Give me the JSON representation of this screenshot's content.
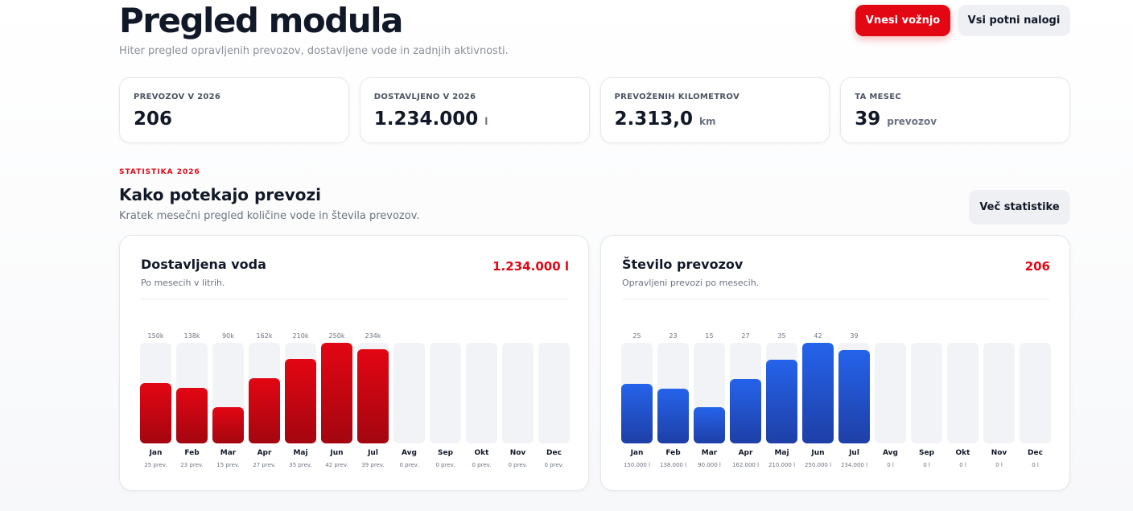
{
  "header": {
    "title": "Pregled modula",
    "subtitle": "Hiter pregled opravljenih prevozov, dostavljene vode in zadnjih aktivnosti.",
    "primary_button": "Vnesi vožnjo",
    "secondary_button": "Vsi potni nalogi"
  },
  "stats": [
    {
      "label": "PREVOZOV V 2026",
      "value": "206",
      "unit": ""
    },
    {
      "label": "DOSTAVLJENO V 2026",
      "value": "1.234.000",
      "unit": "l"
    },
    {
      "label": "PREVOŽENIH KILOMETROV",
      "value": "2.313,0",
      "unit": "km"
    },
    {
      "label": "TA MESEC",
      "value": "39",
      "unit": "prevozov"
    }
  ],
  "section": {
    "eyebrow": "STATISTIKA 2026",
    "title": "Kako potekajo prevozi",
    "subtitle": "Kratek mesečni pregled količine vode in števila prevozov.",
    "more_button": "Več statistike"
  },
  "colors": {
    "accent_red": "#e30613",
    "accent_blue": "#2563eb"
  },
  "chart_data": [
    {
      "type": "bar",
      "title": "Dostavljena voda",
      "subtitle": "Po mesecih v litrih.",
      "total": "1.234.000 l",
      "categories": [
        "Jan",
        "Feb",
        "Mar",
        "Apr",
        "Maj",
        "Jun",
        "Jul",
        "Avg",
        "Sep",
        "Okt",
        "Nov",
        "Dec"
      ],
      "values": [
        150000,
        138000,
        90000,
        162000,
        210000,
        250000,
        234000,
        0,
        0,
        0,
        0,
        0
      ],
      "value_labels": [
        "150k",
        "138k",
        "90k",
        "162k",
        "210k",
        "250k",
        "234k",
        "",
        "",
        "",
        "",
        ""
      ],
      "sub_labels": [
        "25 prev.",
        "23 prev.",
        "15 prev.",
        "27 prev.",
        "35 prev.",
        "42 prev.",
        "39 prev.",
        "0 prev.",
        "0 prev.",
        "0 prev.",
        "0 prev.",
        "0 prev."
      ],
      "ylim": [
        0,
        250000
      ],
      "color": "#e30613"
    },
    {
      "type": "bar",
      "title": "Število prevozov",
      "subtitle": "Opravljeni prevozi po mesecih.",
      "total": "206",
      "categories": [
        "Jan",
        "Feb",
        "Mar",
        "Apr",
        "Maj",
        "Jun",
        "Jul",
        "Avg",
        "Sep",
        "Okt",
        "Nov",
        "Dec"
      ],
      "values": [
        25,
        23,
        15,
        27,
        35,
        42,
        39,
        0,
        0,
        0,
        0,
        0
      ],
      "value_labels": [
        "25",
        "23",
        "15",
        "27",
        "35",
        "42",
        "39",
        "",
        "",
        "",
        "",
        ""
      ],
      "sub_labels": [
        "150.000 l",
        "138.000 l",
        "90.000 l",
        "162.000 l",
        "210.000 l",
        "250.000 l",
        "234.000 l",
        "0 l",
        "0 l",
        "0 l",
        "0 l",
        "0 l"
      ],
      "ylim": [
        0,
        42
      ],
      "color": "#2563eb"
    }
  ]
}
